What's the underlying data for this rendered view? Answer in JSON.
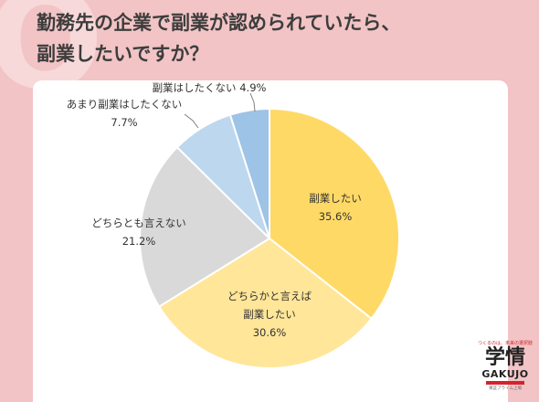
{
  "header": {
    "title_line1": "勤務先の企業で副業が認められていたら、",
    "title_line2": "副業したいですか？",
    "watermark": "Q"
  },
  "chart_data": {
    "type": "pie",
    "start_angle_deg": 0,
    "direction": "clockwise",
    "slices": [
      {
        "label_lines": [
          "副業したい"
        ],
        "value": 35.6,
        "value_label": "35.6%",
        "color": "#ffd966"
      },
      {
        "label_lines": [
          "どちらかと言えば",
          "副業したい"
        ],
        "value": 30.6,
        "value_label": "30.6%",
        "color": "#ffe699"
      },
      {
        "label_lines": [
          "どちらとも言えない"
        ],
        "value": 21.2,
        "value_label": "21.2%",
        "color": "#d9d9d9"
      },
      {
        "label_lines": [
          "あまり副業はしたくない"
        ],
        "value": 7.7,
        "value_label": "7.7%",
        "color": "#bdd7ee"
      },
      {
        "label_lines": [
          "副業はしたくない"
        ],
        "value": 4.9,
        "value_label": "4.9%",
        "color": "#9dc3e6"
      }
    ]
  },
  "brand": {
    "tagline": "つくるのは、未来の選択肢",
    "kanji": "学情",
    "name": "GAKUJO",
    "subtext": "東証プライム上場"
  }
}
